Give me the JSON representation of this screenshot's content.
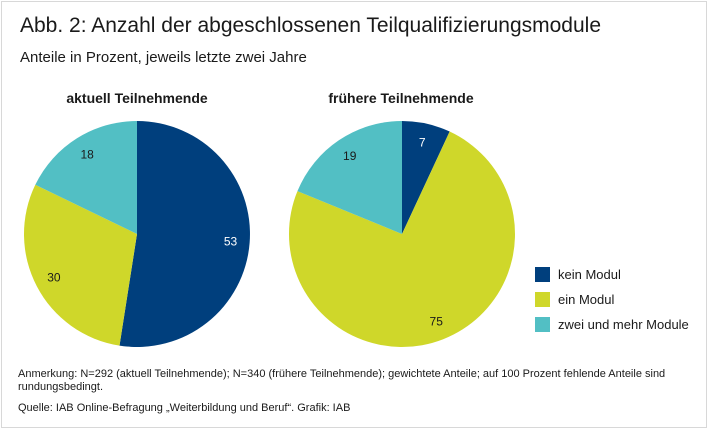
{
  "title": "Abb. 2: Anzahl der abgeschlossenen Teilqualifizierungsmodule",
  "subtitle": "Anteile in Prozent, jeweils letzte zwei Jahre",
  "colors": {
    "kein_modul": "#003f7d",
    "ein_modul": "#cfd72a",
    "zwei_module": "#52bfc4"
  },
  "chart_data": [
    {
      "type": "pie",
      "title": "aktuell Teilnehmende",
      "slices": [
        {
          "label": "kein Modul",
          "value": 53,
          "color": "#003f7d"
        },
        {
          "label": "ein Modul",
          "value": 30,
          "color": "#cfd72a"
        },
        {
          "label": "zwei und mehr Module",
          "value": 18,
          "color": "#52bfc4"
        }
      ]
    },
    {
      "type": "pie",
      "title": "frühere Teilnehmende",
      "slices": [
        {
          "label": "kein Modul",
          "value": 7,
          "color": "#003f7d"
        },
        {
          "label": "ein Modul",
          "value": 75,
          "color": "#cfd72a"
        },
        {
          "label": "zwei und mehr Module",
          "value": 19,
          "color": "#52bfc4"
        }
      ]
    }
  ],
  "legend": [
    {
      "label": "kein Modul",
      "color": "#003f7d"
    },
    {
      "label": "ein Modul",
      "color": "#cfd72a"
    },
    {
      "label": "zwei und mehr Module",
      "color": "#52bfc4"
    }
  ],
  "footnote": "Anmerkung: N=292 (aktuell Teilnehmende); N=340 (frühere Teilnehmende); gewichtete Anteile; auf 100 Prozent fehlende Anteile sind rundungsbedingt.",
  "source": "Quelle: IAB Online-Befragung „Weiterbildung und Beruf“. Grafik: IAB"
}
